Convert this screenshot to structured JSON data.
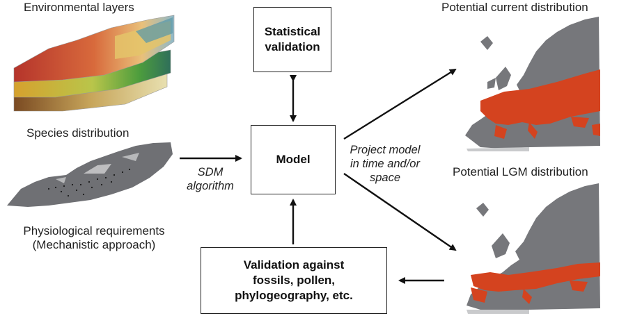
{
  "left": {
    "environmental_layers": "Environmental layers",
    "species_distribution": "Species distribution",
    "physiological_line1": "Physiological requirements",
    "physiological_line2": "(Mechanistic approach)"
  },
  "center": {
    "statistical_line1": "Statistical",
    "statistical_line2": "validation",
    "model": "Model",
    "sdm_line1": "SDM",
    "sdm_line2": "algorithm",
    "validation_line1": "Validation against",
    "validation_line2": "fossils, pollen,",
    "validation_line3": "phylogeography, etc."
  },
  "right": {
    "current_title": "Potential current distribution",
    "lgm_title": "Potential LGM distribution",
    "project_line1": "Project model",
    "project_line2": "in time and/or",
    "project_line3": "space"
  },
  "colors": {
    "land": "#7a7b7f",
    "distribution": "#d4431f",
    "arrow": "#111111"
  }
}
